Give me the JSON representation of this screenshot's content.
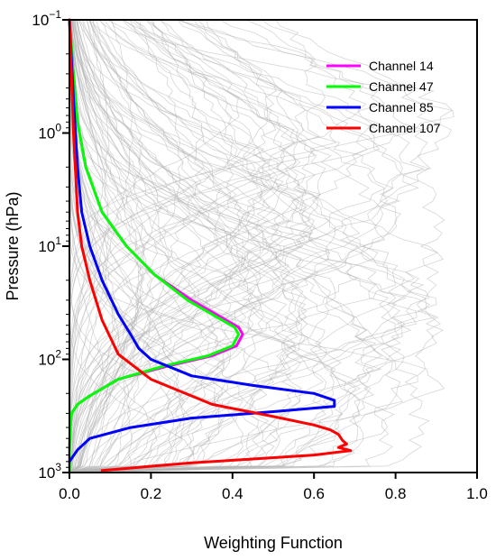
{
  "chart_data": {
    "type": "line",
    "xlabel": "Weighting Function",
    "ylabel": "Pressure (hPa)",
    "xlim": [
      0,
      1.0
    ],
    "ylim": [
      0.1,
      1000
    ],
    "y_scale": "log",
    "y_inverted": true,
    "grid": false,
    "legend_position": "top-right",
    "x_ticks": [
      "0.0",
      "0.2",
      "0.4",
      "0.6",
      "0.8",
      "1.0"
    ],
    "y_ticks": [
      {
        "base": "10",
        "exp": "−1"
      },
      {
        "base": "10",
        "exp": "0"
      },
      {
        "base": "10",
        "exp": "1"
      },
      {
        "base": "10",
        "exp": "2"
      },
      {
        "base": "10",
        "exp": "3"
      }
    ],
    "background_series_color": "#b4b4b4",
    "series": [
      {
        "name": "Channel 14",
        "color": "#ff00ff",
        "x": [
          0.0,
          0.01,
          0.02,
          0.04,
          0.08,
          0.14,
          0.21,
          0.3,
          0.38,
          0.415,
          0.425,
          0.41,
          0.35,
          0.24,
          0.12,
          0.05,
          0.02,
          0.005,
          0.002,
          0.0,
          0.0
        ],
        "y": [
          0.1,
          0.3,
          0.8,
          2.0,
          5.0,
          10.0,
          18.0,
          30.0,
          44.0,
          52.0,
          60.0,
          76.0,
          93.0,
          115.0,
          150.0,
          210.0,
          250.0,
          300.0,
          400.0,
          600.0,
          1000.0
        ]
      },
      {
        "name": "Channel 47",
        "color": "#00ff00",
        "x": [
          0.0,
          0.01,
          0.02,
          0.04,
          0.08,
          0.14,
          0.21,
          0.29,
          0.37,
          0.405,
          0.415,
          0.4,
          0.34,
          0.23,
          0.12,
          0.05,
          0.02,
          0.005,
          0.002,
          0.0,
          0.0
        ],
        "y": [
          0.1,
          0.3,
          0.8,
          2.0,
          5.0,
          10.0,
          18.0,
          30.0,
          44.0,
          52.0,
          60.0,
          76.0,
          93.0,
          115.0,
          150.0,
          210.0,
          250.0,
          300.0,
          400.0,
          600.0,
          1000.0
        ]
      },
      {
        "name": "Channel 85",
        "color": "#0000ff",
        "x": [
          0.0,
          0.01,
          0.02,
          0.03,
          0.05,
          0.08,
          0.12,
          0.15,
          0.17,
          0.2,
          0.3,
          0.45,
          0.6,
          0.65,
          0.65,
          0.5,
          0.3,
          0.15,
          0.05,
          0.02,
          0.0
        ],
        "y": [
          0.1,
          0.5,
          2.0,
          5.0,
          10.0,
          20.0,
          40.0,
          60.0,
          80.0,
          100.0,
          140.0,
          170.0,
          200.0,
          230.0,
          260.0,
          290.0,
          330.0,
          400.0,
          500.0,
          630.0,
          800.0
        ]
      },
      {
        "name": "Channel 107",
        "color": "#ff0000",
        "x": [
          0.0,
          0.01,
          0.02,
          0.03,
          0.05,
          0.08,
          0.12,
          0.2,
          0.35,
          0.5,
          0.6,
          0.64,
          0.66,
          0.67,
          0.68,
          0.66,
          0.69,
          0.6,
          0.45,
          0.3,
          0.2,
          0.08
        ],
        "y": [
          0.1,
          1.0,
          5.0,
          10.0,
          20.0,
          45.0,
          90.0,
          150.0,
          250.0,
          320.0,
          380.0,
          420.0,
          460.0,
          520.0,
          560.0,
          600.0,
          640.0,
          700.0,
          760.0,
          820.0,
          880.0,
          960.0
        ]
      }
    ]
  }
}
